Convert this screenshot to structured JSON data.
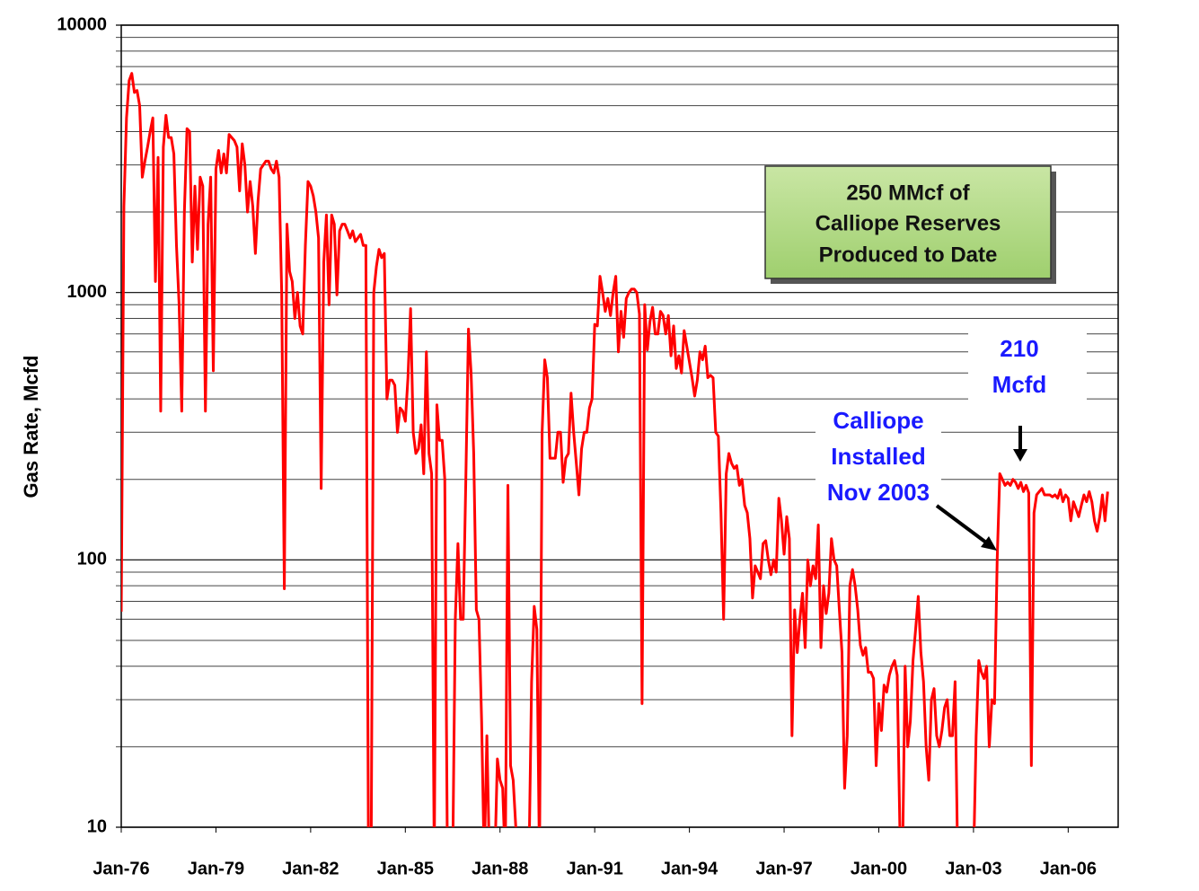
{
  "chart_data": {
    "type": "line",
    "ylabel": "Gas Rate, Mcfd",
    "log_y": true,
    "grid": true,
    "minor_grid": true,
    "color": "#ff0000",
    "ylim": [
      10,
      10000
    ],
    "yticks": [
      10,
      100,
      1000,
      10000
    ],
    "xlim": [
      "1976-01",
      "2007-08"
    ],
    "xticks": [
      {
        "value": "1976-01",
        "label": "Jan-76"
      },
      {
        "value": "1979-01",
        "label": "Jan-79"
      },
      {
        "value": "1982-01",
        "label": "Jan-82"
      },
      {
        "value": "1985-01",
        "label": "Jan-85"
      },
      {
        "value": "1988-01",
        "label": "Jan-88"
      },
      {
        "value": "1991-01",
        "label": "Jan-91"
      },
      {
        "value": "1994-01",
        "label": "Jan-94"
      },
      {
        "value": "1997-01",
        "label": "Jan-97"
      },
      {
        "value": "2000-01",
        "label": "Jan-00"
      },
      {
        "value": "2003-01",
        "label": "Jan-03"
      },
      {
        "value": "2006-01",
        "label": "Jan-06"
      }
    ],
    "annotations": [
      {
        "lines": [
          "250 MMcf of",
          "Calliope Reserves",
          "Produced to Date"
        ]
      },
      {
        "lines": [
          "Calliope",
          "Installed",
          "Nov 2003"
        ]
      },
      {
        "lines": [
          "210",
          "Mcfd"
        ]
      }
    ],
    "x": [
      "1976-01",
      "1976-02",
      "1976-03",
      "1976-04",
      "1976-05",
      "1976-06",
      "1976-07",
      "1976-08",
      "1976-09",
      "1976-10",
      "1976-11",
      "1976-12",
      "1977-01",
      "1977-02",
      "1977-03",
      "1977-04",
      "1977-05",
      "1977-06",
      "1977-07",
      "1977-08",
      "1977-09",
      "1977-10",
      "1977-11",
      "1977-12",
      "1978-01",
      "1978-02",
      "1978-03",
      "1978-04",
      "1978-05",
      "1978-06",
      "1978-07",
      "1978-08",
      "1978-09",
      "1978-10",
      "1978-11",
      "1978-12",
      "1979-01",
      "1979-02",
      "1979-03",
      "1979-04",
      "1979-05",
      "1979-06",
      "1979-07",
      "1979-08",
      "1979-09",
      "1979-10",
      "1979-11",
      "1979-12",
      "1980-01",
      "1980-02",
      "1980-03",
      "1980-04",
      "1980-05",
      "1980-06",
      "1980-07",
      "1980-08",
      "1980-09",
      "1980-10",
      "1980-11",
      "1980-12",
      "1981-01",
      "1981-02",
      "1981-03",
      "1981-04",
      "1981-05",
      "1981-06",
      "1981-07",
      "1981-08",
      "1981-09",
      "1981-10",
      "1981-11",
      "1981-12",
      "1982-01",
      "1982-02",
      "1982-03",
      "1982-04",
      "1982-05",
      "1982-06",
      "1982-07",
      "1982-08",
      "1982-09",
      "1982-10",
      "1982-11",
      "1982-12",
      "1983-01",
      "1983-02",
      "1983-03",
      "1983-04",
      "1983-05",
      "1983-06",
      "1983-07",
      "1983-08",
      "1983-09",
      "1983-10",
      "1983-11",
      "1983-12",
      "1984-01",
      "1984-02",
      "1984-03",
      "1984-04",
      "1984-05",
      "1984-06",
      "1984-07",
      "1984-08",
      "1984-09",
      "1984-10",
      "1984-11",
      "1984-12",
      "1985-01",
      "1985-02",
      "1985-03",
      "1985-04",
      "1985-05",
      "1985-06",
      "1985-07",
      "1985-08",
      "1985-09",
      "1985-10",
      "1985-11",
      "1985-12",
      "1986-01",
      "1986-02",
      "1986-03",
      "1986-04",
      "1986-05",
      "1986-06",
      "1986-07",
      "1986-08",
      "1986-09",
      "1986-10",
      "1986-11",
      "1986-12",
      "1987-01",
      "1987-02",
      "1987-03",
      "1987-04",
      "1987-05",
      "1987-06",
      "1987-07",
      "1987-08",
      "1987-09",
      "1987-10",
      "1987-11",
      "1987-12",
      "1988-01",
      "1988-02",
      "1988-03",
      "1988-04",
      "1988-05",
      "1988-06",
      "1988-07",
      "1988-08",
      "1988-09",
      "1988-10",
      "1988-11",
      "1988-12",
      "1989-01",
      "1989-02",
      "1989-03",
      "1989-04",
      "1989-05",
      "1989-06",
      "1989-07",
      "1989-08",
      "1989-09",
      "1989-10",
      "1989-11",
      "1989-12",
      "1990-01",
      "1990-02",
      "1990-03",
      "1990-04",
      "1990-05",
      "1990-06",
      "1990-07",
      "1990-08",
      "1990-09",
      "1990-10",
      "1990-11",
      "1990-12",
      "1991-01",
      "1991-02",
      "1991-03",
      "1991-04",
      "1991-05",
      "1991-06",
      "1991-07",
      "1991-08",
      "1991-09",
      "1991-10",
      "1991-11",
      "1991-12",
      "1992-01",
      "1992-02",
      "1992-03",
      "1992-04",
      "1992-05",
      "1992-06",
      "1992-07",
      "1992-08",
      "1992-09",
      "1992-10",
      "1992-11",
      "1992-12",
      "1993-01",
      "1993-02",
      "1993-03",
      "1993-04",
      "1993-05",
      "1993-06",
      "1993-07",
      "1993-08",
      "1993-09",
      "1993-10",
      "1993-11",
      "1993-12",
      "1994-01",
      "1994-02",
      "1994-03",
      "1994-04",
      "1994-05",
      "1994-06",
      "1994-07",
      "1994-08",
      "1994-09",
      "1994-10",
      "1994-11",
      "1994-12",
      "1995-01",
      "1995-02",
      "1995-03",
      "1995-04",
      "1995-05",
      "1995-06",
      "1995-07",
      "1995-08",
      "1995-09",
      "1995-10",
      "1995-11",
      "1995-12",
      "1996-01",
      "1996-02",
      "1996-03",
      "1996-04",
      "1996-05",
      "1996-06",
      "1996-07",
      "1996-08",
      "1996-09",
      "1996-10",
      "1996-11",
      "1996-12",
      "1997-01",
      "1997-02",
      "1997-03",
      "1997-04",
      "1997-05",
      "1997-06",
      "1997-07",
      "1997-08",
      "1997-09",
      "1997-10",
      "1997-11",
      "1997-12",
      "1998-01",
      "1998-02",
      "1998-03",
      "1998-04",
      "1998-05",
      "1998-06",
      "1998-07",
      "1998-08",
      "1998-09",
      "1998-10",
      "1998-11",
      "1998-12",
      "1999-01",
      "1999-02",
      "1999-03",
      "1999-04",
      "1999-05",
      "1999-06",
      "1999-07",
      "1999-08",
      "1999-09",
      "1999-10",
      "1999-11",
      "1999-12",
      "2000-01",
      "2000-02",
      "2000-03",
      "2000-04",
      "2000-05",
      "2000-06",
      "2000-07",
      "2000-08",
      "2000-09",
      "2000-10",
      "2000-11",
      "2000-12",
      "2001-01",
      "2001-02",
      "2001-03",
      "2001-04",
      "2001-05",
      "2001-06",
      "2001-07",
      "2001-08",
      "2001-09",
      "2001-10",
      "2001-11",
      "2001-12",
      "2002-01",
      "2002-02",
      "2002-03",
      "2002-04",
      "2002-05",
      "2002-06",
      "2002-07",
      "2002-08",
      "2002-09",
      "2002-10",
      "2002-11",
      "2002-12",
      "2003-01",
      "2003-02",
      "2003-03",
      "2003-04",
      "2003-05",
      "2003-06",
      "2003-07",
      "2003-08",
      "2003-09",
      "2003-10",
      "2003-11",
      "2003-12",
      "2004-01",
      "2004-02",
      "2004-03",
      "2004-04",
      "2004-05",
      "2004-06",
      "2004-07",
      "2004-08",
      "2004-09",
      "2004-10",
      "2004-11",
      "2004-12",
      "2005-01",
      "2005-02",
      "2005-03",
      "2005-04",
      "2005-05",
      "2005-06",
      "2005-07",
      "2005-08",
      "2005-09",
      "2005-10",
      "2005-11",
      "2005-12",
      "2006-01",
      "2006-02",
      "2006-03",
      "2006-04",
      "2006-05",
      "2006-06",
      "2006-07",
      "2006-08",
      "2006-09",
      "2006-10",
      "2006-11",
      "2006-12",
      "2007-01",
      "2007-02",
      "2007-03",
      "2007-04"
    ],
    "values": [
      64,
      2100,
      4500,
      6200,
      6600,
      5600,
      5700,
      5000,
      2700,
      3100,
      3500,
      4000,
      4500,
      1100,
      3200,
      360,
      3500,
      4600,
      3800,
      3800,
      3300,
      1500,
      900,
      360,
      2000,
      4100,
      4000,
      1300,
      2500,
      1450,
      2700,
      2500,
      360,
      1800,
      2700,
      510,
      2900,
      3400,
      2800,
      3300,
      2800,
      3900,
      3800,
      3700,
      3500,
      2400,
      3600,
      3000,
      2000,
      2600,
      2100,
      1400,
      2200,
      2900,
      3000,
      3100,
      3100,
      2900,
      2800,
      3100,
      2700,
      1000,
      78,
      1800,
      1200,
      1100,
      800,
      1000,
      750,
      700,
      1500,
      2600,
      2500,
      2300,
      2000,
      1600,
      185,
      1300,
      1950,
      900,
      1950,
      1800,
      980,
      1700,
      1800,
      1800,
      1700,
      1600,
      1700,
      1550,
      1600,
      1650,
      1500,
      1500,
      0,
      0,
      1000,
      1250,
      1450,
      1350,
      1400,
      400,
      470,
      470,
      450,
      300,
      370,
      360,
      330,
      480,
      870,
      300,
      250,
      260,
      320,
      210,
      600,
      250,
      210,
      0,
      380,
      280,
      280,
      200,
      0,
      0,
      0,
      60,
      115,
      60,
      60,
      200,
      730,
      500,
      250,
      65,
      60,
      25,
      0,
      22,
      0,
      0,
      0,
      18,
      15,
      14,
      0,
      190,
      17,
      15,
      10,
      0,
      0,
      0,
      0,
      0,
      35,
      67,
      55,
      0,
      300,
      560,
      480,
      240,
      240,
      240,
      300,
      300,
      195,
      240,
      250,
      420,
      300,
      230,
      175,
      260,
      300,
      300,
      370,
      400,
      760,
      750,
      1150,
      1000,
      850,
      950,
      820,
      1000,
      1150,
      600,
      850,
      680,
      950,
      1000,
      1030,
      1030,
      1000,
      830,
      29,
      900,
      610,
      780,
      880,
      700,
      700,
      850,
      820,
      700,
      820,
      580,
      750,
      520,
      580,
      500,
      720,
      630,
      550,
      480,
      410,
      470,
      600,
      560,
      630,
      480,
      490,
      480,
      300,
      290,
      150,
      60,
      210,
      250,
      230,
      220,
      225,
      190,
      200,
      160,
      150,
      120,
      72,
      95,
      90,
      85,
      115,
      118,
      100,
      88,
      100,
      90,
      170,
      140,
      105,
      145,
      120,
      22,
      65,
      45,
      60,
      75,
      47,
      100,
      80,
      95,
      85,
      135,
      47,
      80,
      63,
      75,
      120,
      100,
      95,
      65,
      45,
      14,
      22,
      80,
      92,
      80,
      65,
      48,
      44,
      47,
      38,
      38,
      36,
      17,
      29,
      23,
      34,
      32,
      37,
      40,
      42,
      37,
      10,
      0,
      40,
      20,
      25,
      42,
      55,
      73,
      45,
      35,
      20,
      15,
      30,
      33,
      22,
      20,
      23,
      28,
      30,
      22,
      22,
      35,
      0,
      0,
      0,
      0,
      0,
      0,
      0,
      22,
      42,
      38,
      36,
      40,
      20,
      30,
      29,
      100,
      210,
      200,
      190,
      195,
      190,
      200,
      195,
      185,
      195,
      180,
      190,
      178,
      17,
      150,
      175,
      180,
      185,
      175,
      175,
      175,
      172,
      175,
      170,
      183,
      165,
      175,
      170,
      140,
      165,
      155,
      145,
      160,
      175,
      165,
      180,
      165,
      140,
      128,
      145,
      175,
      140,
      180
    ]
  }
}
